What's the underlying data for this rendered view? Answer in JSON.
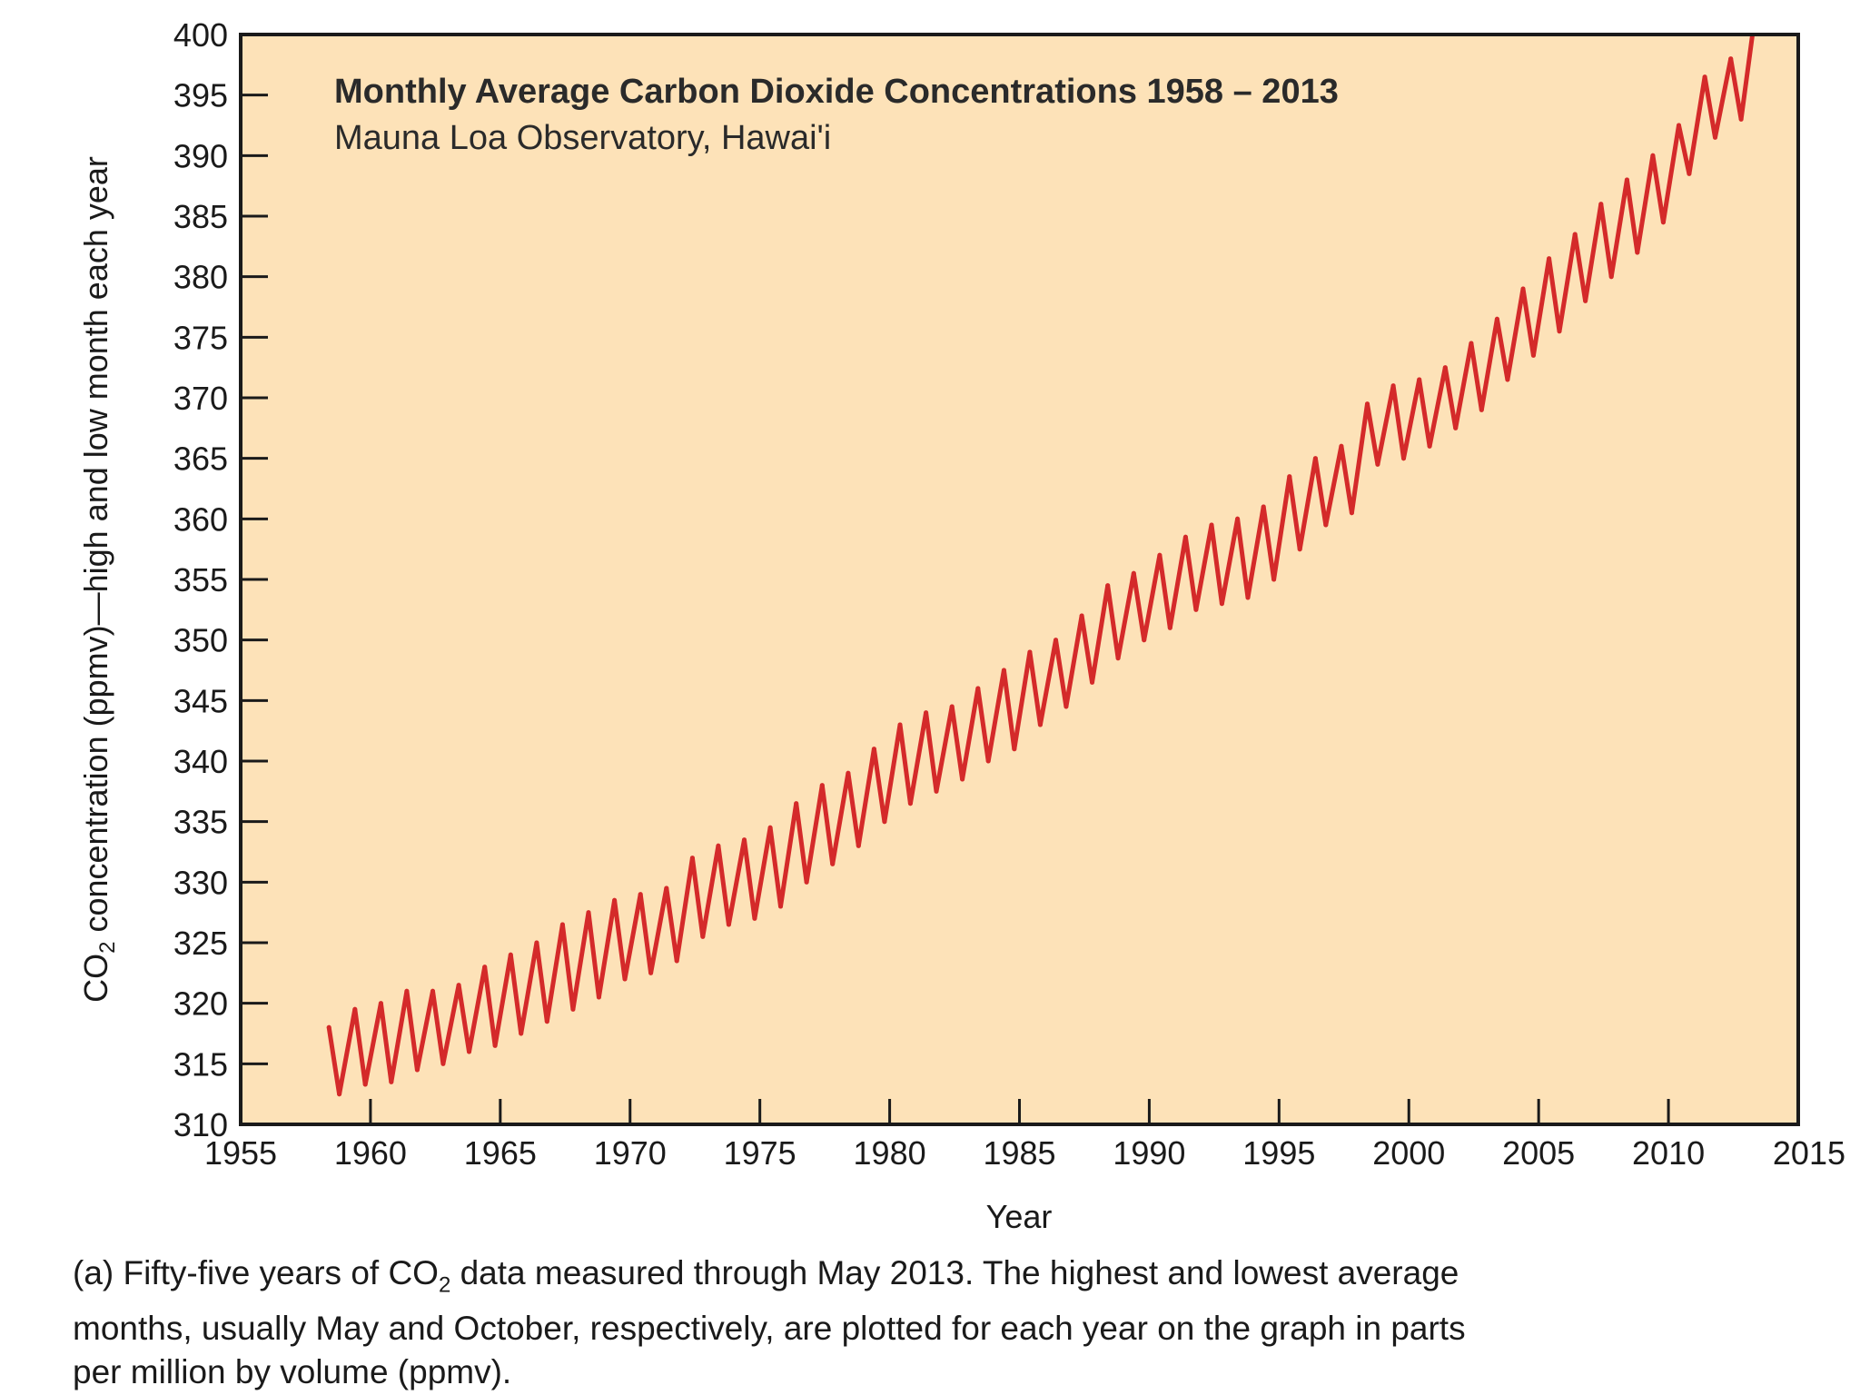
{
  "chart_data": {
    "type": "line",
    "title": "Monthly Average Carbon Dioxide Concentrations 1958 – 2013",
    "subtitle": "Mauna Loa Observatory, Hawai'i",
    "xlabel": "Year",
    "ylabel_main": "CO",
    "ylabel_sub": "2",
    "ylabel_rest": " concentration (ppmv)—high and low month each year",
    "xlim": [
      1955,
      2015
    ],
    "ylim": [
      310,
      400
    ],
    "x_ticks": [
      "1955",
      "1960",
      "1965",
      "1970",
      "1975",
      "1980",
      "1985",
      "1990",
      "1995",
      "2000",
      "2005",
      "2010",
      "2015"
    ],
    "y_ticks": [
      "310",
      "315",
      "320",
      "325",
      "330",
      "335",
      "340",
      "345",
      "350",
      "355",
      "360",
      "365",
      "370",
      "375",
      "380",
      "385",
      "390",
      "395",
      "400"
    ],
    "grid": false,
    "colors": {
      "plot_background": "#fde2b8",
      "line": "#d42a2a",
      "axis": "#1a1a1a"
    },
    "series": [
      {
        "points": [
          [
            1958.4,
            318.0
          ],
          [
            1958.8,
            312.5
          ],
          [
            1959.4,
            319.5
          ],
          [
            1959.8,
            313.3
          ],
          [
            1960.4,
            320.0
          ],
          [
            1960.8,
            313.5
          ],
          [
            1961.4,
            321.0
          ],
          [
            1961.8,
            314.5
          ],
          [
            1962.4,
            321.0
          ],
          [
            1962.8,
            315.0
          ],
          [
            1963.4,
            321.5
          ],
          [
            1963.8,
            316.0
          ],
          [
            1964.4,
            323.0
          ],
          [
            1964.8,
            316.5
          ],
          [
            1965.4,
            324.0
          ],
          [
            1965.8,
            317.5
          ],
          [
            1966.4,
            325.0
          ],
          [
            1966.8,
            318.5
          ],
          [
            1967.4,
            326.5
          ],
          [
            1967.8,
            319.5
          ],
          [
            1968.4,
            327.5
          ],
          [
            1968.8,
            320.5
          ],
          [
            1969.4,
            328.5
          ],
          [
            1969.8,
            322.0
          ],
          [
            1970.4,
            329.0
          ],
          [
            1970.8,
            322.5
          ],
          [
            1971.4,
            329.5
          ],
          [
            1971.8,
            323.5
          ],
          [
            1972.4,
            332.0
          ],
          [
            1972.8,
            325.5
          ],
          [
            1973.4,
            333.0
          ],
          [
            1973.8,
            326.5
          ],
          [
            1974.4,
            333.5
          ],
          [
            1974.8,
            327.0
          ],
          [
            1975.4,
            334.5
          ],
          [
            1975.8,
            328.0
          ],
          [
            1976.4,
            336.5
          ],
          [
            1976.8,
            330.0
          ],
          [
            1977.4,
            338.0
          ],
          [
            1977.8,
            331.5
          ],
          [
            1978.4,
            339.0
          ],
          [
            1978.8,
            333.0
          ],
          [
            1979.4,
            341.0
          ],
          [
            1979.8,
            335.0
          ],
          [
            1980.4,
            343.0
          ],
          [
            1980.8,
            336.5
          ],
          [
            1981.4,
            344.0
          ],
          [
            1981.8,
            337.5
          ],
          [
            1982.4,
            344.5
          ],
          [
            1982.8,
            338.5
          ],
          [
            1983.4,
            346.0
          ],
          [
            1983.8,
            340.0
          ],
          [
            1984.4,
            347.5
          ],
          [
            1984.8,
            341.0
          ],
          [
            1985.4,
            349.0
          ],
          [
            1985.8,
            343.0
          ],
          [
            1986.4,
            350.0
          ],
          [
            1986.8,
            344.5
          ],
          [
            1987.4,
            352.0
          ],
          [
            1987.8,
            346.5
          ],
          [
            1988.4,
            354.5
          ],
          [
            1988.8,
            348.5
          ],
          [
            1989.4,
            355.5
          ],
          [
            1989.8,
            350.0
          ],
          [
            1990.4,
            357.0
          ],
          [
            1990.8,
            351.0
          ],
          [
            1991.4,
            358.5
          ],
          [
            1991.8,
            352.5
          ],
          [
            1992.4,
            359.5
          ],
          [
            1992.8,
            353.0
          ],
          [
            1993.4,
            360.0
          ],
          [
            1993.8,
            353.5
          ],
          [
            1994.4,
            361.0
          ],
          [
            1994.8,
            355.0
          ],
          [
            1995.4,
            363.5
          ],
          [
            1995.8,
            357.5
          ],
          [
            1996.4,
            365.0
          ],
          [
            1996.8,
            359.5
          ],
          [
            1997.4,
            366.0
          ],
          [
            1997.8,
            360.5
          ],
          [
            1998.4,
            369.5
          ],
          [
            1998.8,
            364.5
          ],
          [
            1999.4,
            371.0
          ],
          [
            1999.8,
            365.0
          ],
          [
            2000.4,
            371.5
          ],
          [
            2000.8,
            366.0
          ],
          [
            2001.4,
            372.5
          ],
          [
            2001.8,
            367.5
          ],
          [
            2002.4,
            374.5
          ],
          [
            2002.8,
            369.0
          ],
          [
            2003.4,
            376.5
          ],
          [
            2003.8,
            371.5
          ],
          [
            2004.4,
            379.0
          ],
          [
            2004.8,
            373.5
          ],
          [
            2005.4,
            381.5
          ],
          [
            2005.8,
            375.5
          ],
          [
            2006.4,
            383.5
          ],
          [
            2006.8,
            378.0
          ],
          [
            2007.4,
            386.0
          ],
          [
            2007.8,
            380.0
          ],
          [
            2008.4,
            388.0
          ],
          [
            2008.8,
            382.0
          ],
          [
            2009.4,
            390.0
          ],
          [
            2009.8,
            384.5
          ],
          [
            2010.4,
            392.5
          ],
          [
            2010.8,
            388.5
          ],
          [
            2011.4,
            396.5
          ],
          [
            2011.8,
            391.5
          ],
          [
            2012.4,
            398.0
          ],
          [
            2012.8,
            393.0
          ],
          [
            2013.3,
            401.0
          ]
        ]
      }
    ]
  },
  "caption": {
    "line1_a": "(a) Fifty-five years of CO",
    "line1_sub": "2",
    "line1_b": " data measured through May 2013. The highest and lowest average",
    "line2": "months, usually May and October, respectively, are plotted for each year on the graph in parts",
    "line3": "per million by volume (ppmv)."
  }
}
